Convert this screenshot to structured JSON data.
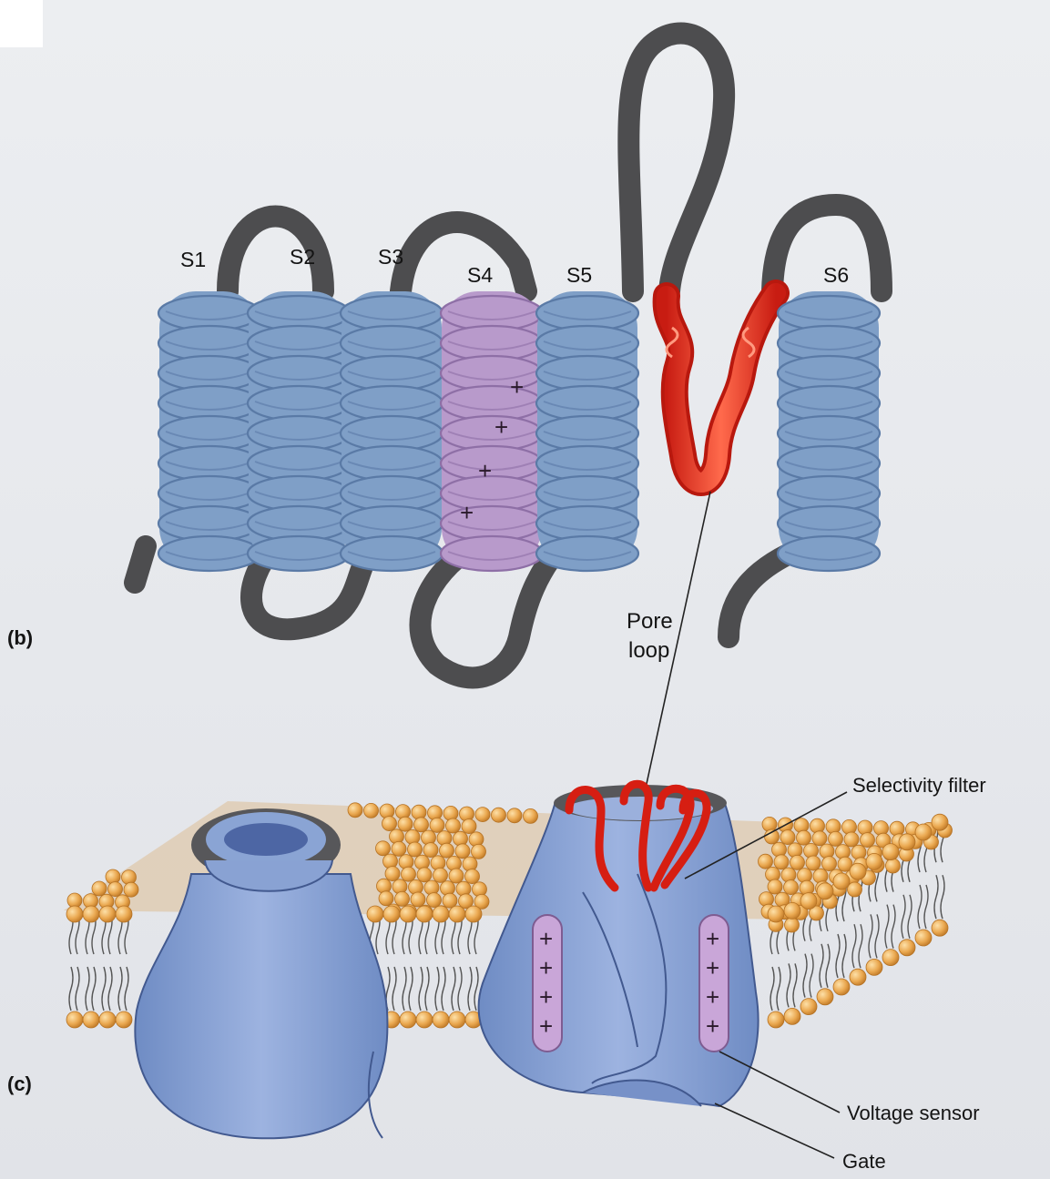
{
  "panels": {
    "b": "(b)",
    "c": "(c)"
  },
  "segments": [
    "S1",
    "S2",
    "S3",
    "S4",
    "S5",
    "S6"
  ],
  "labels": {
    "pore_line1": "Pore",
    "pore_line2": "loop",
    "selectivity_filter": "Selectivity filter",
    "voltage_sensor": "Voltage sensor",
    "gate": "Gate"
  },
  "charge_symbol": "+",
  "colors": {
    "helix": "#7f9fc7",
    "voltage_helix": "#b89acb",
    "pore_loop": "#e2362a",
    "linker": "#4d4d4f",
    "channel": "#7e98cc",
    "lipid_head": "#eaa850"
  }
}
